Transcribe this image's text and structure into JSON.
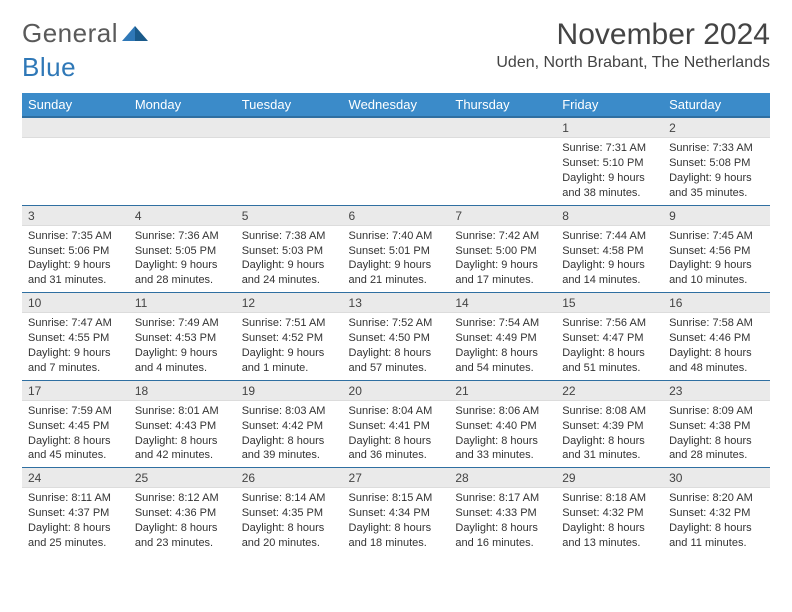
{
  "logo": {
    "part1": "General",
    "part2": "Blue"
  },
  "title": "November 2024",
  "location": "Uden, North Brabant, The Netherlands",
  "columns": [
    "Sunday",
    "Monday",
    "Tuesday",
    "Wednesday",
    "Thursday",
    "Friday",
    "Saturday"
  ],
  "colors": {
    "header_bg": "#3b8bc9",
    "header_text": "#ffffff",
    "border": "#2f6fa1",
    "daynum_bg": "#eaeaea",
    "text": "#333333",
    "logo_gray": "#5a5a5a",
    "logo_blue": "#2f78b7",
    "page_bg": "#ffffff"
  },
  "weeks": [
    [
      {
        "n": "",
        "sr": "",
        "ss": "",
        "dl": ""
      },
      {
        "n": "",
        "sr": "",
        "ss": "",
        "dl": ""
      },
      {
        "n": "",
        "sr": "",
        "ss": "",
        "dl": ""
      },
      {
        "n": "",
        "sr": "",
        "ss": "",
        "dl": ""
      },
      {
        "n": "",
        "sr": "",
        "ss": "",
        "dl": ""
      },
      {
        "n": "1",
        "sr": "Sunrise: 7:31 AM",
        "ss": "Sunset: 5:10 PM",
        "dl": "Daylight: 9 hours and 38 minutes."
      },
      {
        "n": "2",
        "sr": "Sunrise: 7:33 AM",
        "ss": "Sunset: 5:08 PM",
        "dl": "Daylight: 9 hours and 35 minutes."
      }
    ],
    [
      {
        "n": "3",
        "sr": "Sunrise: 7:35 AM",
        "ss": "Sunset: 5:06 PM",
        "dl": "Daylight: 9 hours and 31 minutes."
      },
      {
        "n": "4",
        "sr": "Sunrise: 7:36 AM",
        "ss": "Sunset: 5:05 PM",
        "dl": "Daylight: 9 hours and 28 minutes."
      },
      {
        "n": "5",
        "sr": "Sunrise: 7:38 AM",
        "ss": "Sunset: 5:03 PM",
        "dl": "Daylight: 9 hours and 24 minutes."
      },
      {
        "n": "6",
        "sr": "Sunrise: 7:40 AM",
        "ss": "Sunset: 5:01 PM",
        "dl": "Daylight: 9 hours and 21 minutes."
      },
      {
        "n": "7",
        "sr": "Sunrise: 7:42 AM",
        "ss": "Sunset: 5:00 PM",
        "dl": "Daylight: 9 hours and 17 minutes."
      },
      {
        "n": "8",
        "sr": "Sunrise: 7:44 AM",
        "ss": "Sunset: 4:58 PM",
        "dl": "Daylight: 9 hours and 14 minutes."
      },
      {
        "n": "9",
        "sr": "Sunrise: 7:45 AM",
        "ss": "Sunset: 4:56 PM",
        "dl": "Daylight: 9 hours and 10 minutes."
      }
    ],
    [
      {
        "n": "10",
        "sr": "Sunrise: 7:47 AM",
        "ss": "Sunset: 4:55 PM",
        "dl": "Daylight: 9 hours and 7 minutes."
      },
      {
        "n": "11",
        "sr": "Sunrise: 7:49 AM",
        "ss": "Sunset: 4:53 PM",
        "dl": "Daylight: 9 hours and 4 minutes."
      },
      {
        "n": "12",
        "sr": "Sunrise: 7:51 AM",
        "ss": "Sunset: 4:52 PM",
        "dl": "Daylight: 9 hours and 1 minute."
      },
      {
        "n": "13",
        "sr": "Sunrise: 7:52 AM",
        "ss": "Sunset: 4:50 PM",
        "dl": "Daylight: 8 hours and 57 minutes."
      },
      {
        "n": "14",
        "sr": "Sunrise: 7:54 AM",
        "ss": "Sunset: 4:49 PM",
        "dl": "Daylight: 8 hours and 54 minutes."
      },
      {
        "n": "15",
        "sr": "Sunrise: 7:56 AM",
        "ss": "Sunset: 4:47 PM",
        "dl": "Daylight: 8 hours and 51 minutes."
      },
      {
        "n": "16",
        "sr": "Sunrise: 7:58 AM",
        "ss": "Sunset: 4:46 PM",
        "dl": "Daylight: 8 hours and 48 minutes."
      }
    ],
    [
      {
        "n": "17",
        "sr": "Sunrise: 7:59 AM",
        "ss": "Sunset: 4:45 PM",
        "dl": "Daylight: 8 hours and 45 minutes."
      },
      {
        "n": "18",
        "sr": "Sunrise: 8:01 AM",
        "ss": "Sunset: 4:43 PM",
        "dl": "Daylight: 8 hours and 42 minutes."
      },
      {
        "n": "19",
        "sr": "Sunrise: 8:03 AM",
        "ss": "Sunset: 4:42 PM",
        "dl": "Daylight: 8 hours and 39 minutes."
      },
      {
        "n": "20",
        "sr": "Sunrise: 8:04 AM",
        "ss": "Sunset: 4:41 PM",
        "dl": "Daylight: 8 hours and 36 minutes."
      },
      {
        "n": "21",
        "sr": "Sunrise: 8:06 AM",
        "ss": "Sunset: 4:40 PM",
        "dl": "Daylight: 8 hours and 33 minutes."
      },
      {
        "n": "22",
        "sr": "Sunrise: 8:08 AM",
        "ss": "Sunset: 4:39 PM",
        "dl": "Daylight: 8 hours and 31 minutes."
      },
      {
        "n": "23",
        "sr": "Sunrise: 8:09 AM",
        "ss": "Sunset: 4:38 PM",
        "dl": "Daylight: 8 hours and 28 minutes."
      }
    ],
    [
      {
        "n": "24",
        "sr": "Sunrise: 8:11 AM",
        "ss": "Sunset: 4:37 PM",
        "dl": "Daylight: 8 hours and 25 minutes."
      },
      {
        "n": "25",
        "sr": "Sunrise: 8:12 AM",
        "ss": "Sunset: 4:36 PM",
        "dl": "Daylight: 8 hours and 23 minutes."
      },
      {
        "n": "26",
        "sr": "Sunrise: 8:14 AM",
        "ss": "Sunset: 4:35 PM",
        "dl": "Daylight: 8 hours and 20 minutes."
      },
      {
        "n": "27",
        "sr": "Sunrise: 8:15 AM",
        "ss": "Sunset: 4:34 PM",
        "dl": "Daylight: 8 hours and 18 minutes."
      },
      {
        "n": "28",
        "sr": "Sunrise: 8:17 AM",
        "ss": "Sunset: 4:33 PM",
        "dl": "Daylight: 8 hours and 16 minutes."
      },
      {
        "n": "29",
        "sr": "Sunrise: 8:18 AM",
        "ss": "Sunset: 4:32 PM",
        "dl": "Daylight: 8 hours and 13 minutes."
      },
      {
        "n": "30",
        "sr": "Sunrise: 8:20 AM",
        "ss": "Sunset: 4:32 PM",
        "dl": "Daylight: 8 hours and 11 minutes."
      }
    ]
  ]
}
